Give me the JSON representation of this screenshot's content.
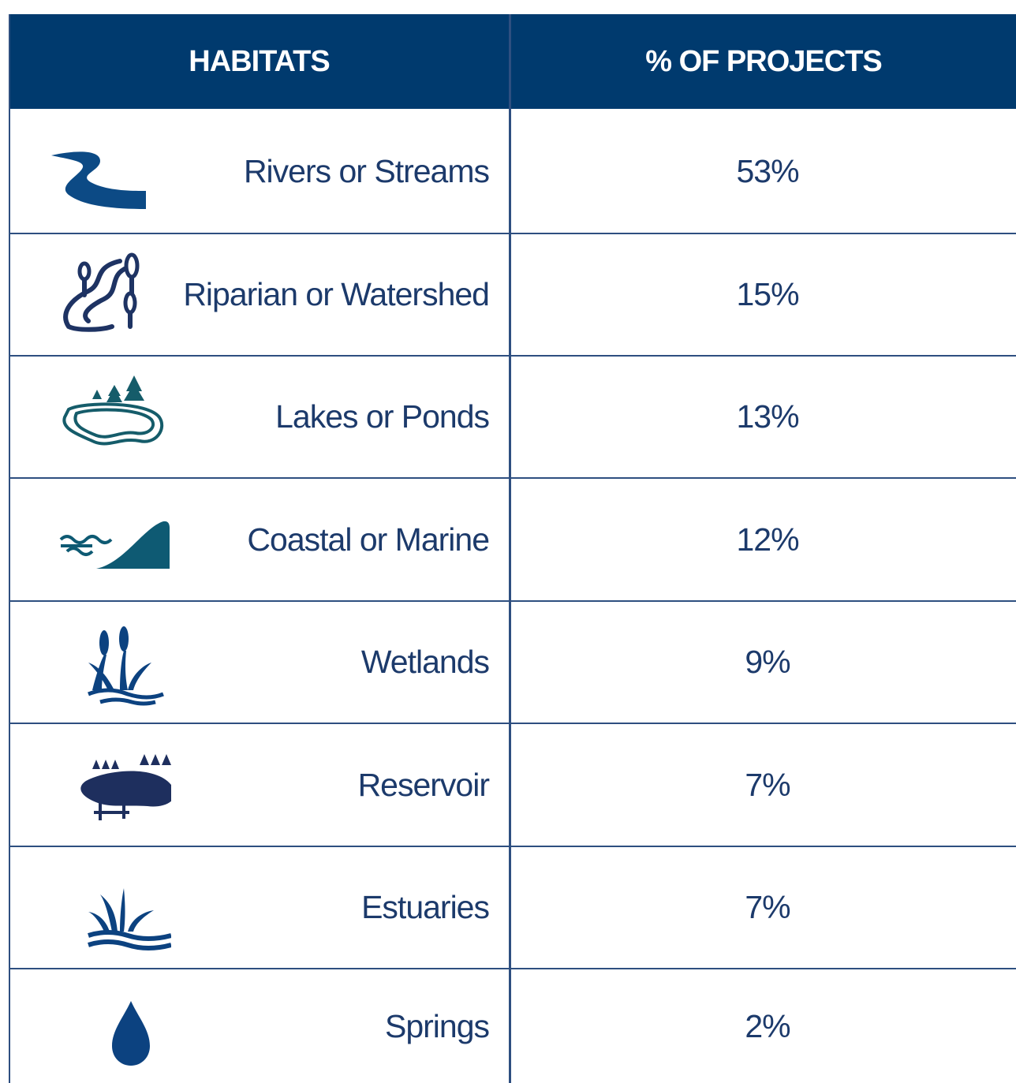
{
  "table": {
    "headers": [
      "HABITATS",
      "% OF PROJECTS"
    ],
    "rows": [
      [
        "Rivers or Streams",
        "53%"
      ],
      [
        "Riparian or Watershed",
        "15%"
      ],
      [
        "Lakes or Ponds",
        "13%"
      ],
      [
        "Coastal or Marine",
        "12%"
      ],
      [
        "Wetlands",
        "9%"
      ],
      [
        "Reservoir",
        "7%"
      ],
      [
        "Estuaries",
        "7%"
      ],
      [
        "Springs",
        "2%"
      ]
    ]
  }
}
